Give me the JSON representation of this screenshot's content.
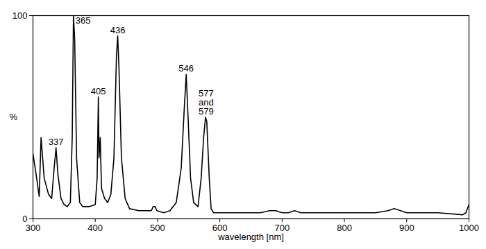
{
  "chart_data": {
    "type": "line",
    "x_label": "wavelength [nm]",
    "y_label": "%",
    "color": "#000000",
    "x": [
      300,
      305,
      310,
      313,
      318,
      325,
      330,
      334,
      337,
      340,
      345,
      350,
      355,
      360,
      363,
      365,
      367,
      370,
      375,
      380,
      390,
      400,
      403,
      405,
      406,
      408,
      410,
      415,
      420,
      425,
      430,
      434,
      436,
      438,
      442,
      448,
      455,
      470,
      480,
      490,
      493,
      496,
      499,
      510,
      520,
      530,
      538,
      543,
      546,
      549,
      553,
      558,
      565,
      570,
      574,
      577,
      579,
      583,
      586,
      590,
      600,
      650,
      665,
      680,
      690,
      700,
      710,
      720,
      730,
      750,
      800,
      850,
      870,
      880,
      890,
      900,
      950,
      990,
      995,
      1000
    ],
    "values": [
      32,
      22,
      11,
      40,
      20,
      12,
      10,
      25,
      35,
      22,
      10,
      7,
      6,
      8,
      40,
      100,
      88,
      30,
      8,
      6,
      6,
      7,
      20,
      60,
      30,
      40,
      15,
      10,
      8,
      12,
      30,
      80,
      90,
      75,
      30,
      10,
      5,
      4,
      4,
      4,
      6,
      6,
      4,
      3,
      4,
      8,
      25,
      55,
      71,
      50,
      20,
      8,
      6,
      20,
      40,
      50,
      48,
      20,
      5,
      3,
      3,
      3,
      3,
      4,
      4,
      3,
      3,
      4,
      3,
      3,
      3,
      3,
      4,
      5,
      4,
      3,
      3,
      2,
      3,
      7
    ],
    "xlim": [
      300,
      1000
    ],
    "ylim": [
      0,
      100
    ],
    "xticks": [
      300,
      400,
      500,
      600,
      700,
      800,
      900,
      1000
    ],
    "yticks": [
      0,
      100
    ],
    "grid": false,
    "annotations": [
      {
        "text": "337",
        "x": 337,
        "y": 35
      },
      {
        "text": "365",
        "x": 365,
        "y": 100
      },
      {
        "text": "405",
        "x": 405,
        "y": 60
      },
      {
        "text": "436",
        "x": 436,
        "y": 90
      },
      {
        "text": "546",
        "x": 546,
        "y": 71
      },
      {
        "text": "577\nand\n579",
        "x": 578,
        "y": 50
      }
    ]
  }
}
